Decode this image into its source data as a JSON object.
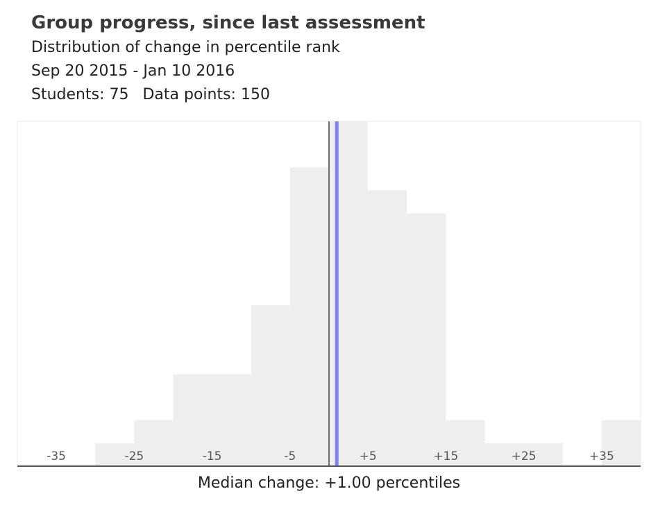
{
  "header": {
    "title": "Group progress, since last assessment",
    "subtitle": "Distribution of change in percentile rank",
    "date_range": "Sep 20 2015 - Jan 10 2016",
    "students": "Students: 75",
    "data_points": "Data points: 150"
  },
  "footer": {
    "median_label": "Median change: +1.00 percentiles"
  },
  "colors": {
    "bar": "#eeeeee",
    "median_line": "#8080f0",
    "zero_line": "#444444",
    "axis": "#555555",
    "tick_text": "#555555",
    "frame": "#e8e8e8"
  },
  "chart_data": {
    "type": "bar",
    "title": "Group progress, since last assessment",
    "subtitle": "Distribution of change in percentile rank",
    "xlabel": "",
    "ylabel": "",
    "xlim": [
      -40,
      40
    ],
    "bin_width": 5,
    "bins": [
      {
        "start": -40,
        "end": -35,
        "count": 0
      },
      {
        "start": -35,
        "end": -30,
        "count": 0
      },
      {
        "start": -30,
        "end": -25,
        "count": 1
      },
      {
        "start": -25,
        "end": -20,
        "count": 2
      },
      {
        "start": -20,
        "end": -15,
        "count": 4
      },
      {
        "start": -15,
        "end": -10,
        "count": 4
      },
      {
        "start": -10,
        "end": -5,
        "count": 7
      },
      {
        "start": -5,
        "end": 0,
        "count": 13
      },
      {
        "start": 0,
        "end": 5,
        "count": 15
      },
      {
        "start": 5,
        "end": 10,
        "count": 12
      },
      {
        "start": 10,
        "end": 15,
        "count": 11
      },
      {
        "start": 15,
        "end": 20,
        "count": 2
      },
      {
        "start": 20,
        "end": 25,
        "count": 1
      },
      {
        "start": 25,
        "end": 30,
        "count": 1
      },
      {
        "start": 30,
        "end": 35,
        "count": 0
      },
      {
        "start": 35,
        "end": 40,
        "count": 2
      }
    ],
    "ymax": 15,
    "tick_values": [
      -35,
      -25,
      -15,
      -5,
      5,
      15,
      25,
      35
    ],
    "tick_labels": [
      "-35",
      "-25",
      "-15",
      "-5",
      "+5",
      "+15",
      "+25",
      "+35"
    ],
    "median": 1.0,
    "reference_line": 0,
    "grid": false,
    "legend": "none"
  }
}
